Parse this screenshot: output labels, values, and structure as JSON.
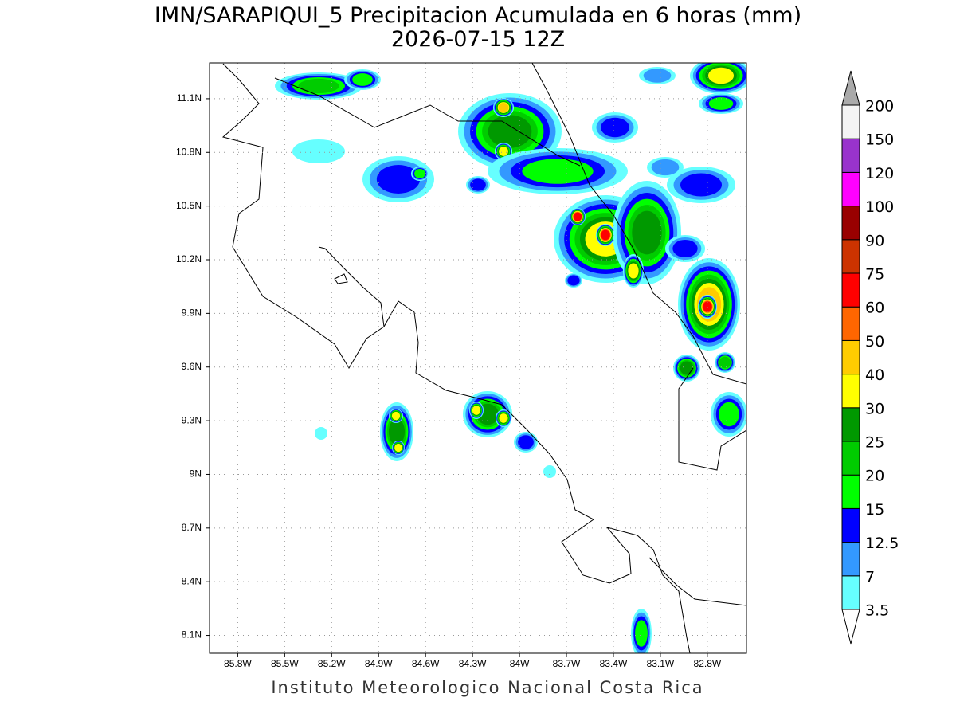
{
  "title": "IMN/SARAPIQUI_5 Precipitacion Acumulada en 6 horas (mm)",
  "subtitle": "2026-07-15 12Z",
  "footer": "Instituto Meteorologico Nacional Costa Rica",
  "map": {
    "lonlim": [
      -85.98,
      -82.55
    ],
    "latlim": [
      8.0,
      11.3
    ],
    "grid": true,
    "lonticks": [
      {
        "value": -85.8,
        "label": "85.8W"
      },
      {
        "value": -85.5,
        "label": "85.5W"
      },
      {
        "value": -85.2,
        "label": "85.2W"
      },
      {
        "value": -84.9,
        "label": "84.9W"
      },
      {
        "value": -84.6,
        "label": "84.6W"
      },
      {
        "value": -84.3,
        "label": "84.3W"
      },
      {
        "value": -84.0,
        "label": "84W"
      },
      {
        "value": -83.7,
        "label": "83.7W"
      },
      {
        "value": -83.4,
        "label": "83.4W"
      },
      {
        "value": -83.1,
        "label": "83.1W"
      },
      {
        "value": -82.8,
        "label": "82.8W"
      }
    ],
    "latticks": [
      {
        "value": 8.1,
        "label": "8.1N"
      },
      {
        "value": 8.4,
        "label": "8.4N"
      },
      {
        "value": 8.7,
        "label": "8.7N"
      },
      {
        "value": 9.0,
        "label": "9N"
      },
      {
        "value": 9.3,
        "label": "9.3N"
      },
      {
        "value": 9.6,
        "label": "9.6N"
      },
      {
        "value": 9.9,
        "label": "9.9N"
      },
      {
        "value": 10.2,
        "label": "10.2N"
      },
      {
        "value": 10.5,
        "label": "10.5N"
      },
      {
        "value": 10.8,
        "label": "10.8N"
      },
      {
        "value": 11.1,
        "label": "11.1N"
      }
    ]
  },
  "colorbar": {
    "levels": [
      3.5,
      7,
      12.5,
      15,
      20,
      25,
      30,
      40,
      50,
      60,
      75,
      90,
      100,
      120,
      150,
      200
    ],
    "colors": [
      "#ffffff",
      "#66ffff",
      "#3399ff",
      "#0000ff",
      "#00ff00",
      "#00cc00",
      "#009900",
      "#ffff00",
      "#ffcc00",
      "#ff6600",
      "#ff0000",
      "#cc3300",
      "#990000",
      "#ff00ff",
      "#9933cc",
      "#f4f4f4",
      "#aaaaaa"
    ]
  }
}
